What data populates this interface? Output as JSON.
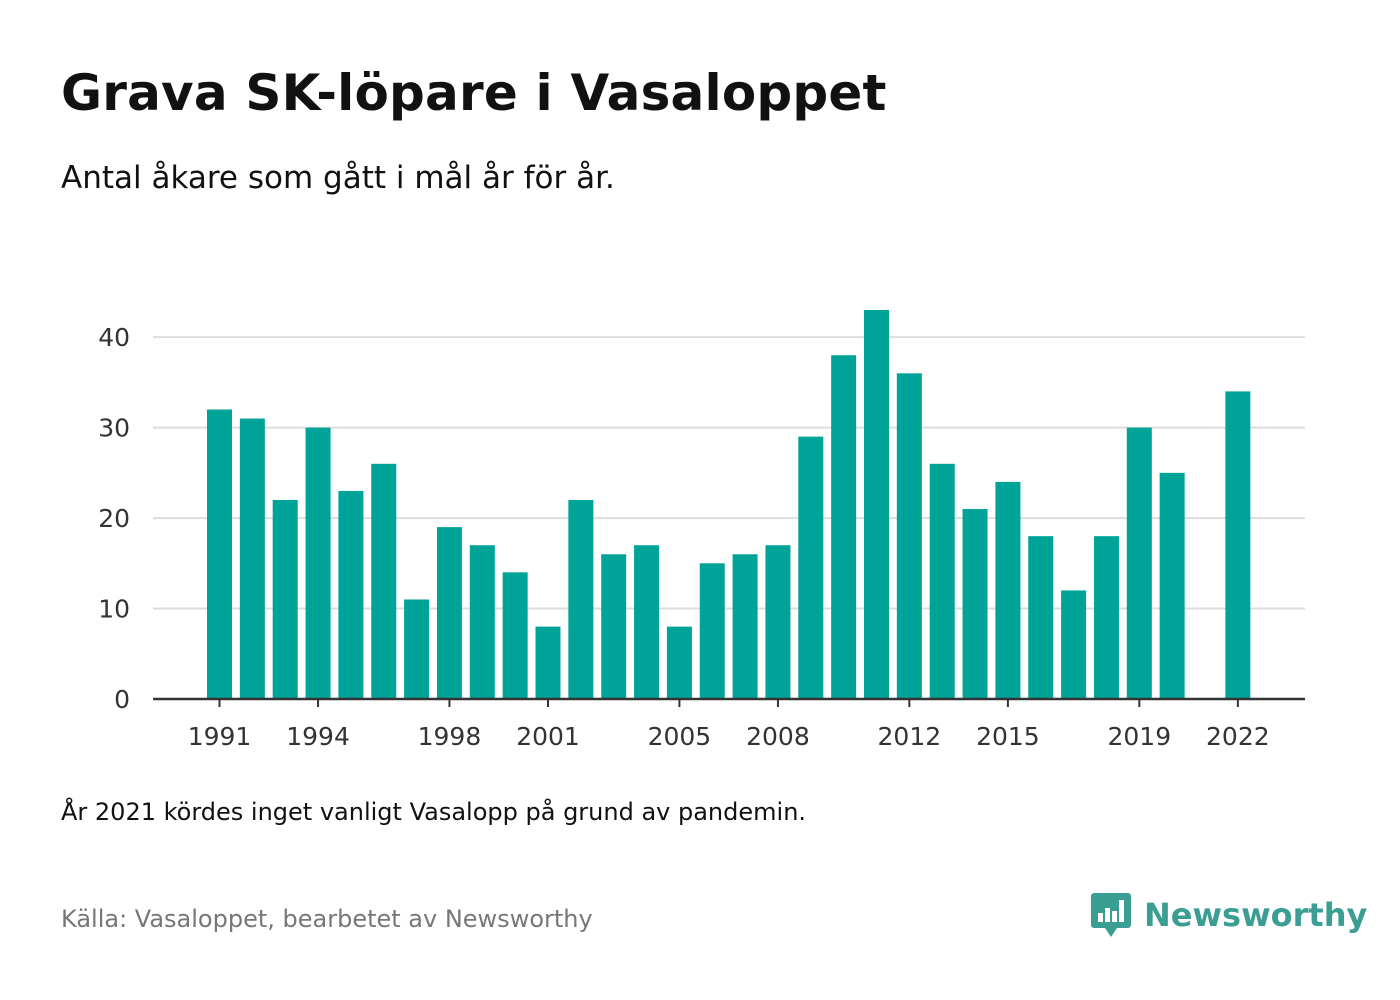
{
  "title": "Grava SK-löpare i Vasaloppet",
  "subtitle": "Antal åkare som gått i mål år för år.",
  "note": "År 2021 kördes inget vanligt Vasalopp på grund av pandemin.",
  "source": "Källa: Vasaloppet, bearbetet av Newsworthy",
  "brand": {
    "name": "Newsworthy",
    "icon": "newsworthy-logo-icon",
    "color": "#3a9e93"
  },
  "chart_data": {
    "type": "bar",
    "categories": [
      "1991",
      "1992",
      "1993",
      "1994",
      "1995",
      "1996",
      "1997",
      "1998",
      "1999",
      "2000",
      "2001",
      "2002",
      "2003",
      "2004",
      "2005",
      "2006",
      "2007",
      "2008",
      "2009",
      "2010",
      "2011",
      "2012",
      "2013",
      "2014",
      "2015",
      "2016",
      "2017",
      "2018",
      "2019",
      "2020",
      "2021",
      "2022"
    ],
    "values": [
      32,
      31,
      22,
      30,
      23,
      26,
      11,
      19,
      17,
      14,
      8,
      22,
      16,
      17,
      8,
      15,
      16,
      17,
      29,
      38,
      43,
      36,
      26,
      21,
      24,
      18,
      12,
      18,
      30,
      25,
      null,
      34
    ],
    "xticks": [
      "1991",
      "1994",
      "1998",
      "2001",
      "2005",
      "2008",
      "2012",
      "2015",
      "2019",
      "2022"
    ],
    "yticks": [
      0,
      10,
      20,
      30,
      40
    ],
    "ylim": [
      0,
      43
    ],
    "grid": true,
    "bar_color": "#00a398",
    "grid_color": "#dddddd",
    "axis_color": "#333333"
  }
}
